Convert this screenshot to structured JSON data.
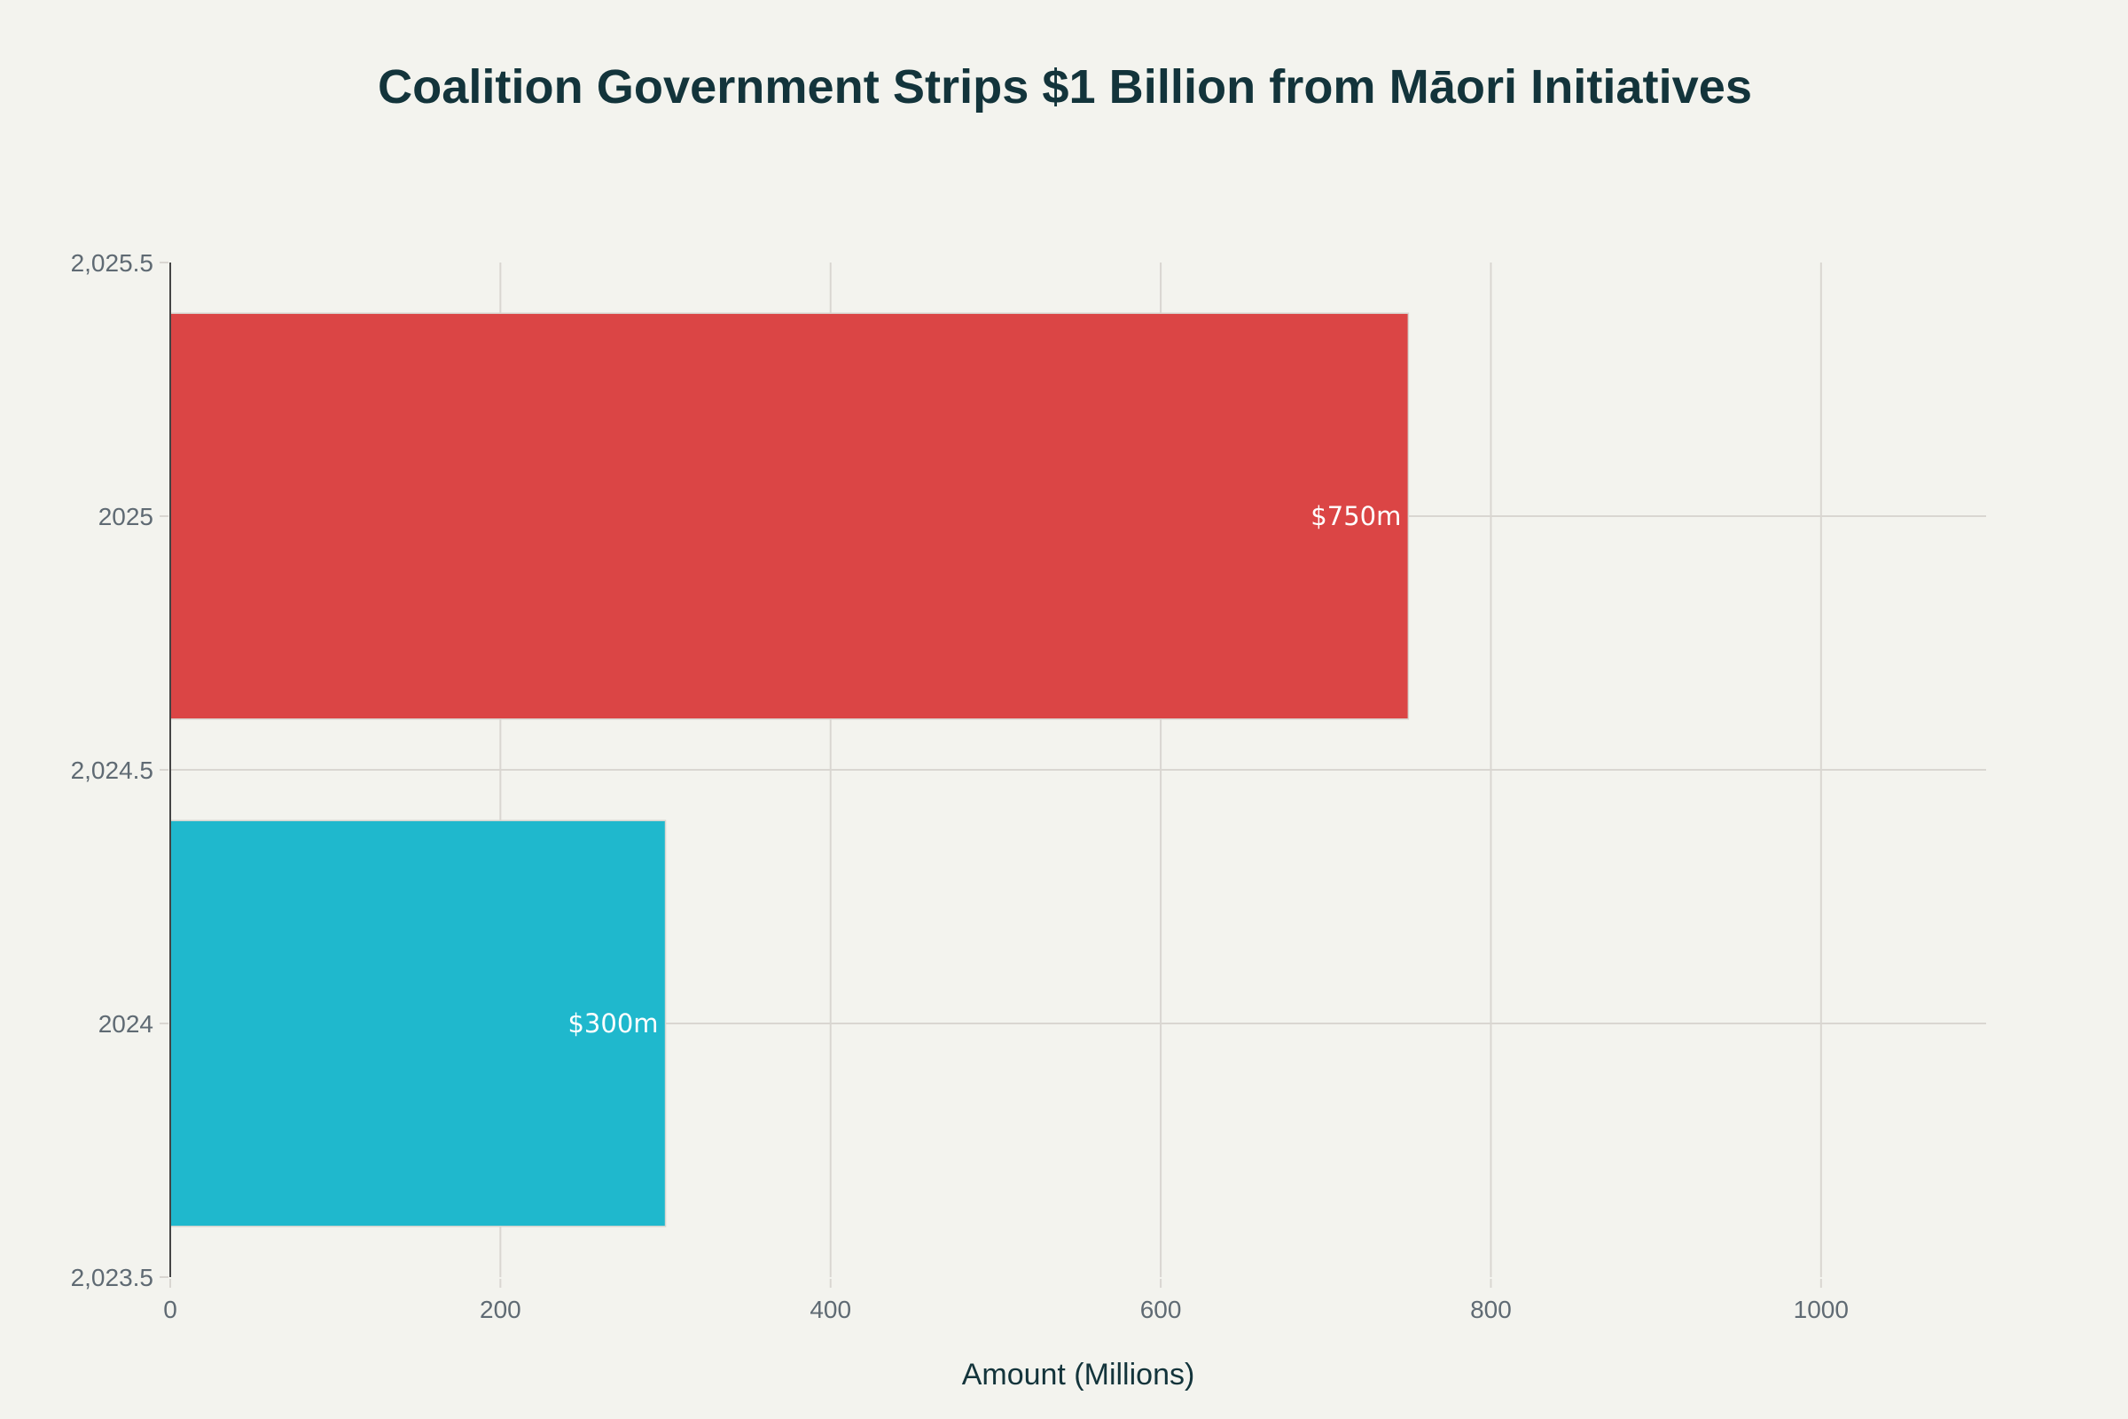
{
  "chart_data": {
    "type": "bar",
    "orientation": "horizontal",
    "title": "Coalition Government Strips $1 Billion from Māori Initiatives",
    "xlabel": "Amount (Millions)",
    "ylabel": "",
    "categories": [
      2024,
      2025
    ],
    "values": [
      300,
      750
    ],
    "bar_labels": [
      "$300m",
      "$750m"
    ],
    "bar_colors": [
      "#1FB8CD",
      "#DB4545"
    ],
    "bar_width": 0.8,
    "xlim": [
      0,
      1100
    ],
    "ylim": [
      2023.5,
      2025.5
    ],
    "xticks": [
      0,
      200,
      400,
      600,
      800,
      1000
    ],
    "xtick_labels": [
      "0",
      "200",
      "400",
      "600",
      "800",
      "1000"
    ],
    "yticks": [
      2023.5,
      2024,
      2024.5,
      2025,
      2025.5
    ],
    "ytick_labels": [
      "2,023.5",
      "2024",
      "2,024.5",
      "2025",
      "2,025.5"
    ],
    "grid": true,
    "legend": "none"
  },
  "colors": {
    "background": "#F3F3EE",
    "text": "#13343B",
    "tick_text": "#5F6A73",
    "grid": "#D9D6D1",
    "axis": "#444444"
  }
}
